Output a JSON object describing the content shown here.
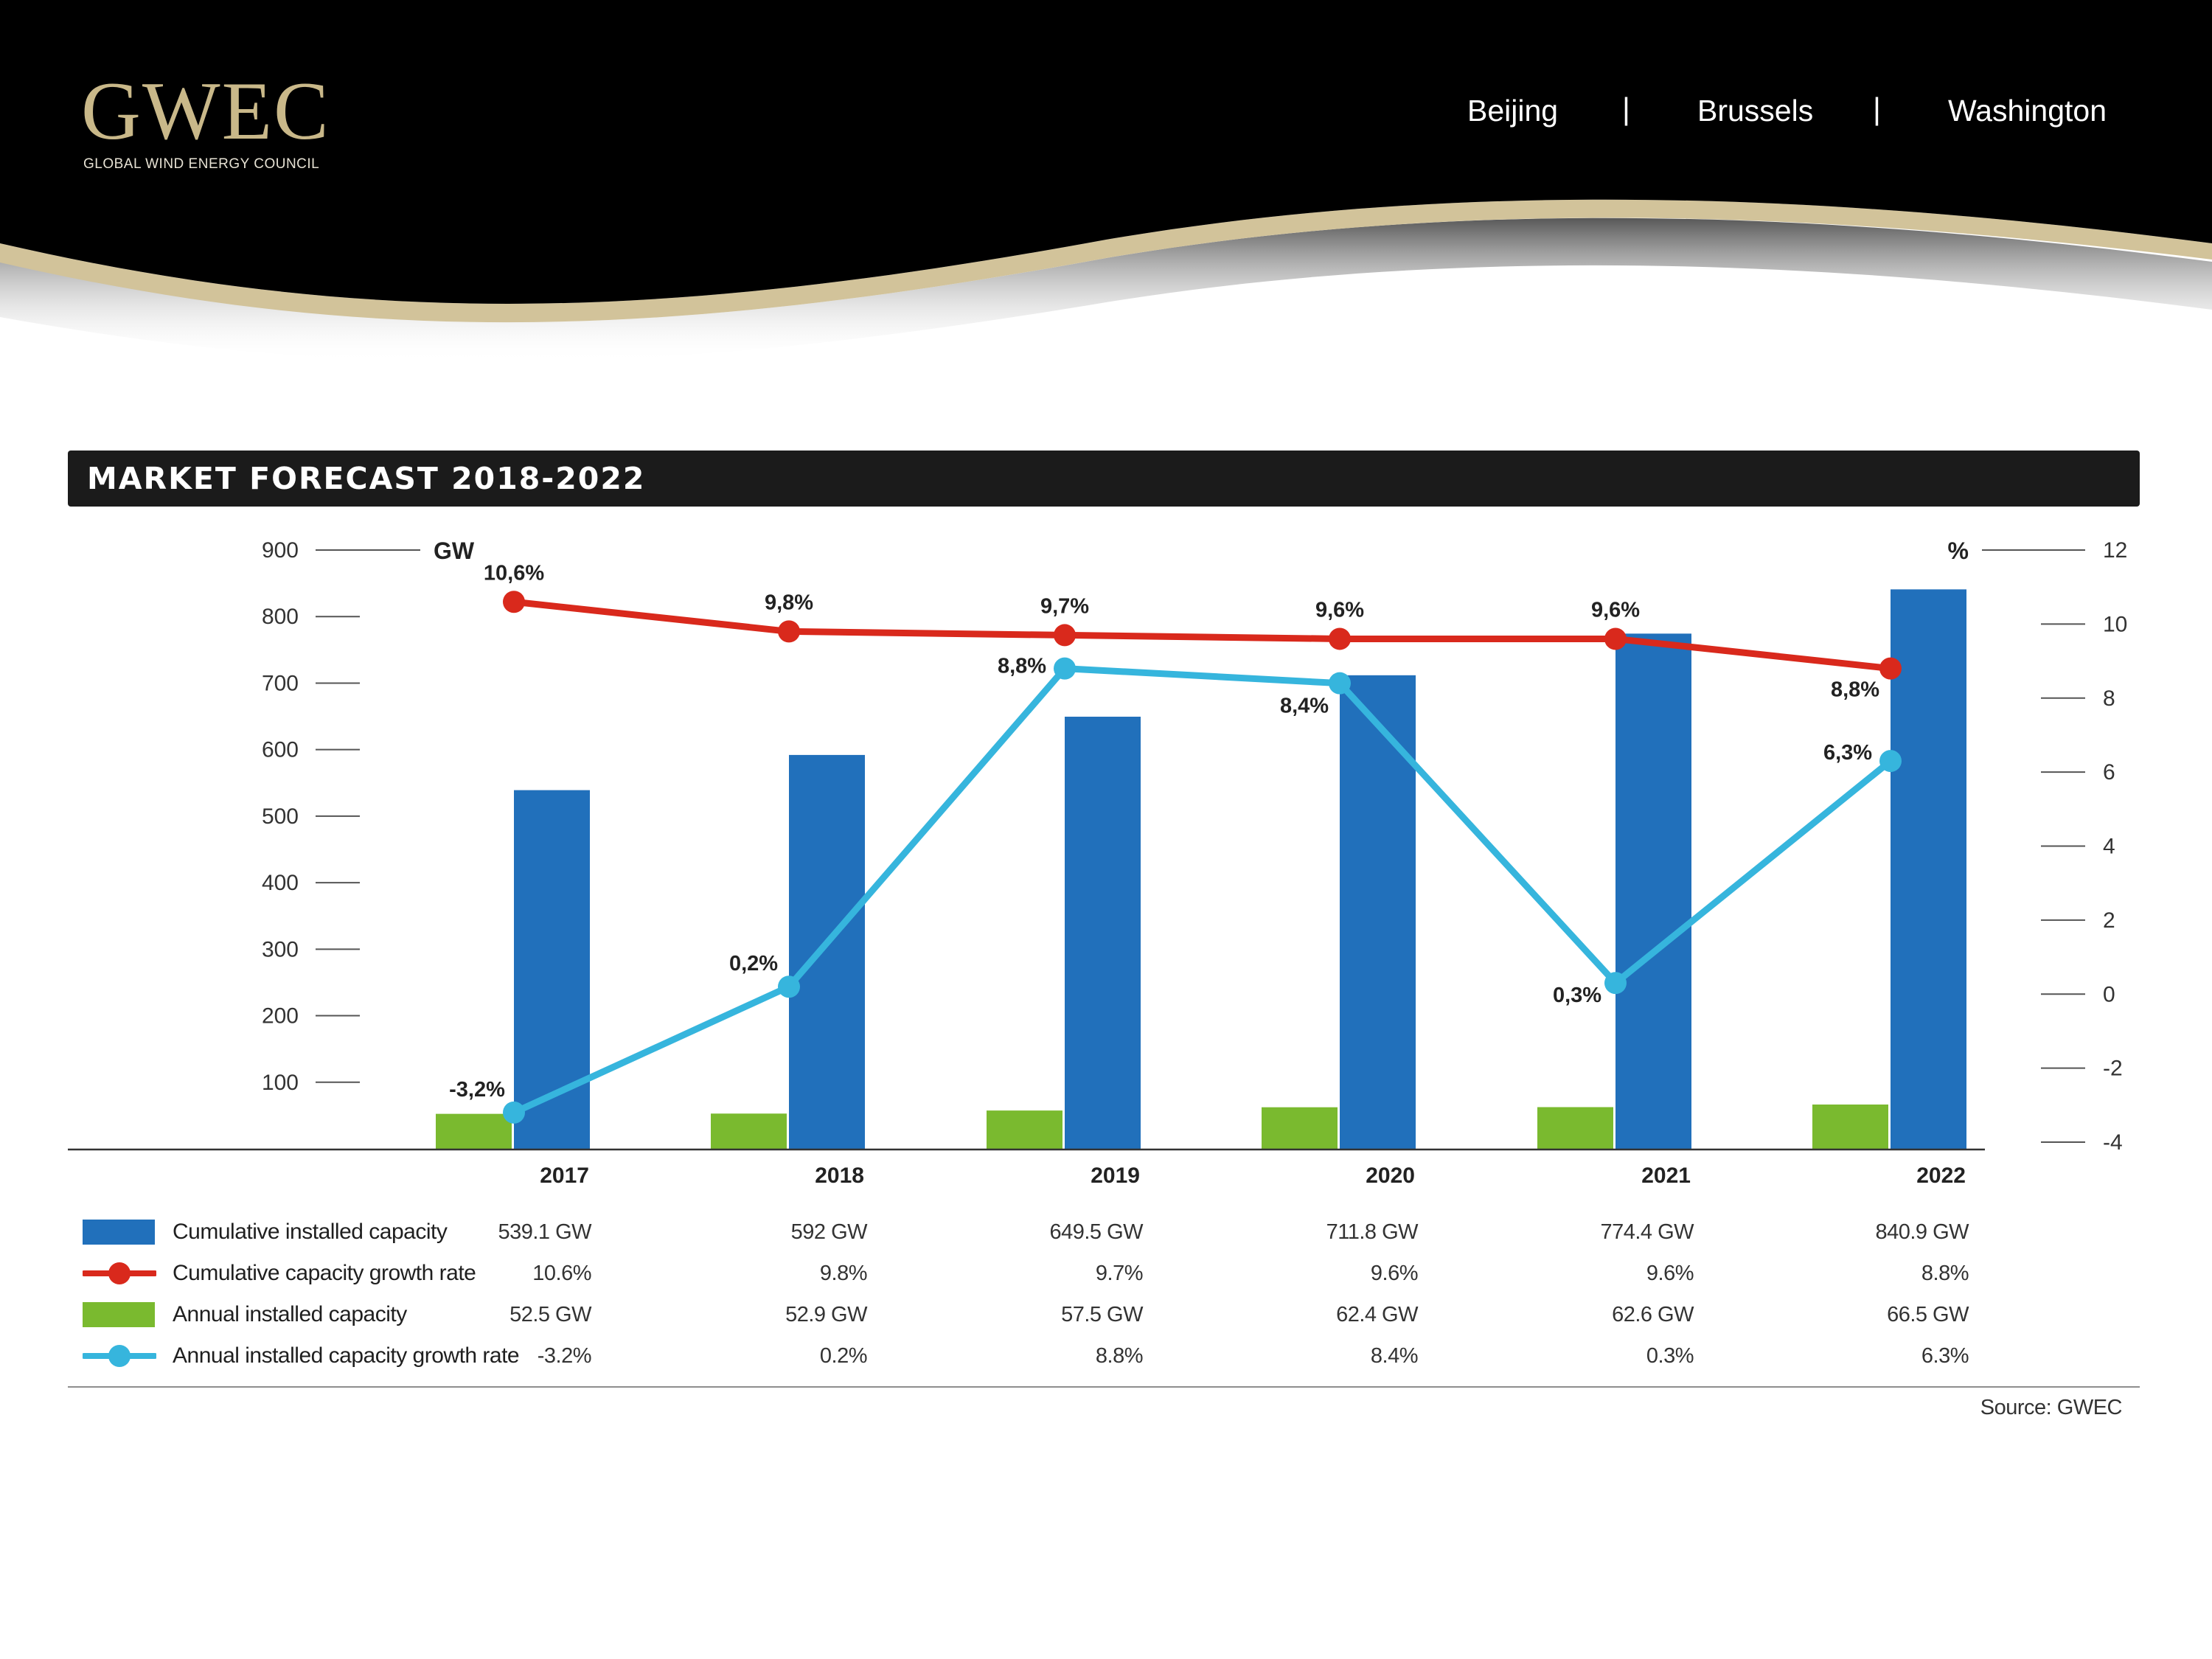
{
  "header": {
    "logo_text": "GWEC",
    "logo_subtitle": "GLOBAL WIND ENERGY COUNCIL",
    "nav": [
      "Beijing",
      "Brussels",
      "Washington"
    ],
    "separator": "|",
    "background_color": "#000000",
    "accent_color": "#d2c39a"
  },
  "title_bar": {
    "text": "MARKET FORECAST 2018-2022"
  },
  "chart_data": {
    "type": "bar+line",
    "title": "MARKET FORECAST 2018-2022",
    "categories": [
      "2017",
      "2018",
      "2019",
      "2020",
      "2021",
      "2022"
    ],
    "left_axis": {
      "unit": "GW",
      "range": [
        0,
        900
      ],
      "ticks": [
        100,
        200,
        300,
        400,
        500,
        600,
        700,
        800,
        900
      ]
    },
    "right_axis": {
      "unit": "%",
      "range": [
        -4,
        12
      ],
      "ticks": [
        -4,
        -2,
        0,
        2,
        4,
        6,
        8,
        10,
        12
      ]
    },
    "series": [
      {
        "name": "Cumulative installed capacity",
        "type": "bar",
        "axis": "left",
        "color": "#2170bb",
        "values": [
          539.1,
          592,
          649.5,
          711.8,
          774.4,
          840.9
        ]
      },
      {
        "name": "Cumulative capacity growth rate",
        "type": "line",
        "axis": "right",
        "color": "#d9291c",
        "values": [
          10.6,
          9.8,
          9.7,
          9.6,
          9.6,
          8.8
        ],
        "labels": [
          "10,6%",
          "9,8%",
          "9,7%",
          "9,6%",
          "9,6%",
          "8,8%"
        ]
      },
      {
        "name": "Annual installed capacity",
        "type": "bar",
        "axis": "left",
        "color": "#7aba2f",
        "values": [
          52.5,
          52.9,
          57.5,
          62.4,
          62.6,
          66.5
        ]
      },
      {
        "name": "Annual installed capacity growth rate",
        "type": "line",
        "axis": "right",
        "color": "#36b5dd",
        "values": [
          -3.2,
          0.2,
          8.8,
          8.4,
          0.3,
          6.3
        ],
        "labels": [
          "-3,2%",
          "0,2%",
          "8,8%",
          "8,4%",
          "0,3%",
          "6,3%"
        ]
      }
    ]
  },
  "table": {
    "rows": [
      {
        "label": "Cumulative installed capacity",
        "swatch": "bar",
        "color": "#2170bb",
        "values": [
          "539.1 GW",
          "592 GW",
          "649.5 GW",
          "711.8 GW",
          "774.4 GW",
          "840.9 GW"
        ]
      },
      {
        "label": "Cumulative capacity growth rate",
        "swatch": "line",
        "color": "#d9291c",
        "values": [
          "10.6%",
          "9.8%",
          "9.7%",
          "9.6%",
          "9.6%",
          "8.8%"
        ]
      },
      {
        "label": "Annual installed capacity",
        "swatch": "bar",
        "color": "#7aba2f",
        "values": [
          "52.5 GW",
          "52.9 GW",
          "57.5 GW",
          "62.4 GW",
          "62.6 GW",
          "66.5 GW"
        ]
      },
      {
        "label": "Annual installed capacity growth rate",
        "swatch": "line",
        "color": "#36b5dd",
        "values": [
          "-3.2%",
          "0.2%",
          "8.8%",
          "8.4%",
          "0.3%",
          "6.3%"
        ]
      }
    ]
  },
  "source": "Source: GWEC"
}
